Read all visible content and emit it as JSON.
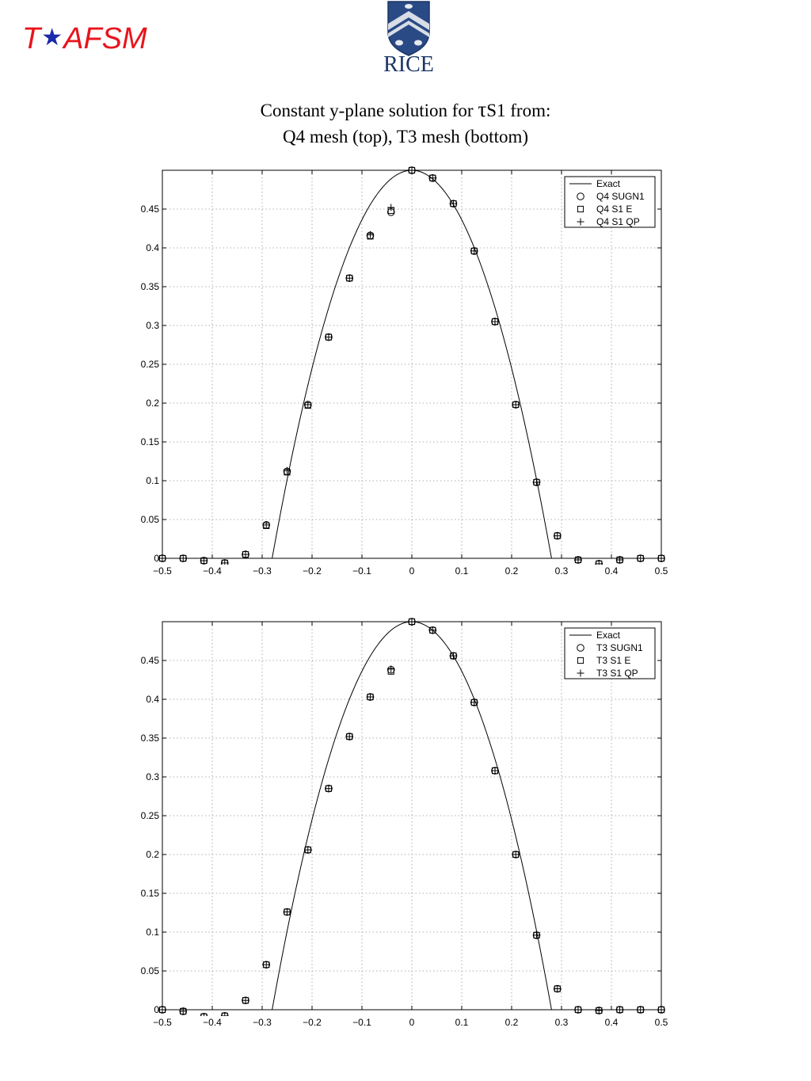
{
  "header": {
    "brand_left": "T",
    "brand_star": "★",
    "brand_right": "AFSM",
    "logo_text": "RICE",
    "logo_icon": "rice-university-shield",
    "title_line1_pre": "Constant y-plane solution for ",
    "title_tau": "τ",
    "title_line1_post": "S1 from:",
    "title_line2": "Q4 mesh (top), T3 mesh (bottom)"
  },
  "colors": {
    "brand_red": "#e8141c",
    "brand_star": "#1a2aa8",
    "shield": "#2a4a86",
    "line": "#000000",
    "grid": "#999999"
  },
  "chart_data": [
    {
      "type": "line",
      "title": "",
      "xlabel": "",
      "ylabel": "",
      "xlim": [
        -0.5,
        0.5
      ],
      "ylim": [
        0,
        0.5
      ],
      "xticks": [
        "−0.5",
        "−0.4",
        "−0.3",
        "−0.2",
        "−0.1",
        "0",
        "0.1",
        "0.2",
        "0.3",
        "0.4",
        "0.5"
      ],
      "xtick_values": [
        -0.5,
        -0.4,
        -0.3,
        -0.2,
        -0.1,
        0,
        0.1,
        0.2,
        0.3,
        0.4,
        0.5
      ],
      "yticks": [
        "0",
        "0.05",
        "0.1",
        "0.15",
        "0.2",
        "0.25",
        "0.3",
        "0.35",
        "0.4",
        "0.45"
      ],
      "ytick_values": [
        0,
        0.05,
        0.1,
        0.15,
        0.2,
        0.25,
        0.3,
        0.35,
        0.4,
        0.45
      ],
      "grid": true,
      "legend_position": "top-right",
      "series": [
        {
          "name": "Exact",
          "style": "line",
          "x": [
            -0.5,
            -0.28,
            -0.25,
            -0.2,
            -0.15,
            -0.1,
            -0.05,
            0,
            0.05,
            0.1,
            0.15,
            0.2,
            0.25,
            0.28,
            0.5
          ],
          "y": [
            0,
            0,
            0.104,
            0.245,
            0.357,
            0.438,
            0.484,
            0.5,
            0.484,
            0.438,
            0.357,
            0.245,
            0.104,
            0,
            0
          ]
        },
        {
          "name": "Q4 SUGN1",
          "style": "circle",
          "x": [
            -0.5,
            -0.4583,
            -0.4167,
            -0.375,
            -0.3333,
            -0.2917,
            -0.25,
            -0.2083,
            -0.1667,
            -0.125,
            -0.0833,
            -0.0417,
            0,
            0.0417,
            0.0833,
            0.125,
            0.1667,
            0.2083,
            0.25,
            0.2917,
            0.3333,
            0.375,
            0.4167,
            0.4583,
            0.5
          ],
          "y": [
            0,
            0,
            -0.003,
            -0.006,
            0.005,
            0.043,
            0.112,
            0.198,
            0.285,
            0.361,
            0.416,
            0.446,
            0.5,
            0.49,
            0.457,
            0.396,
            0.305,
            0.198,
            0.098,
            0.029,
            -0.002,
            -0.007,
            -0.002,
            0,
            0
          ]
        },
        {
          "name": "Q4 S1 E",
          "style": "square",
          "x": [
            -0.5,
            -0.4583,
            -0.4167,
            -0.375,
            -0.3333,
            -0.2917,
            -0.25,
            -0.2083,
            -0.1667,
            -0.125,
            -0.0833,
            -0.0417,
            0,
            0.0417,
            0.0833,
            0.125,
            0.1667,
            0.2083,
            0.25,
            0.2917,
            0.3333,
            0.375,
            0.4167,
            0.4583,
            0.5
          ],
          "y": [
            0,
            0,
            -0.003,
            -0.006,
            0.005,
            0.042,
            0.111,
            0.197,
            0.285,
            0.361,
            0.415,
            0.448,
            0.5,
            0.49,
            0.457,
            0.396,
            0.305,
            0.198,
            0.098,
            0.029,
            -0.002,
            -0.007,
            -0.002,
            0,
            0
          ]
        },
        {
          "name": "Q4 S1 QP",
          "style": "plus",
          "x": [
            -0.5,
            -0.4583,
            -0.4167,
            -0.375,
            -0.3333,
            -0.2917,
            -0.25,
            -0.2083,
            -0.1667,
            -0.125,
            -0.0833,
            -0.0417,
            0,
            0.0417,
            0.0833,
            0.125,
            0.1667,
            0.2083,
            0.25,
            0.2917,
            0.3333,
            0.375,
            0.4167,
            0.4583,
            0.5
          ],
          "y": [
            0,
            0,
            -0.003,
            -0.006,
            0.005,
            0.043,
            0.113,
            0.198,
            0.285,
            0.361,
            0.417,
            0.452,
            0.5,
            0.49,
            0.457,
            0.396,
            0.305,
            0.198,
            0.098,
            0.029,
            -0.002,
            -0.007,
            -0.002,
            0,
            0
          ]
        }
      ]
    },
    {
      "type": "line",
      "title": "",
      "xlabel": "",
      "ylabel": "",
      "xlim": [
        -0.5,
        0.5
      ],
      "ylim": [
        0,
        0.5
      ],
      "xticks": [
        "−0.5",
        "−0.4",
        "−0.3",
        "−0.2",
        "−0.1",
        "0",
        "0.1",
        "0.2",
        "0.3",
        "0.4",
        "0.5"
      ],
      "xtick_values": [
        -0.5,
        -0.4,
        -0.3,
        -0.2,
        -0.1,
        0,
        0.1,
        0.2,
        0.3,
        0.4,
        0.5
      ],
      "yticks": [
        "0",
        "0.05",
        "0.1",
        "0.15",
        "0.2",
        "0.25",
        "0.3",
        "0.35",
        "0.4",
        "0.45"
      ],
      "ytick_values": [
        0,
        0.05,
        0.1,
        0.15,
        0.2,
        0.25,
        0.3,
        0.35,
        0.4,
        0.45
      ],
      "grid": true,
      "legend_position": "top-right",
      "series": [
        {
          "name": "Exact",
          "style": "line",
          "x": [
            -0.5,
            -0.28,
            -0.25,
            -0.2,
            -0.15,
            -0.1,
            -0.05,
            0,
            0.05,
            0.1,
            0.15,
            0.2,
            0.25,
            0.28,
            0.5
          ],
          "y": [
            0,
            0,
            0.104,
            0.245,
            0.357,
            0.438,
            0.484,
            0.5,
            0.484,
            0.438,
            0.357,
            0.245,
            0.104,
            0,
            0
          ]
        },
        {
          "name": "T3 SUGN1",
          "style": "circle",
          "x": [
            -0.5,
            -0.4583,
            -0.4167,
            -0.375,
            -0.3333,
            -0.2917,
            -0.25,
            -0.2083,
            -0.1667,
            -0.125,
            -0.0833,
            -0.0417,
            0,
            0.0417,
            0.0833,
            0.125,
            0.1667,
            0.2083,
            0.25,
            0.2917,
            0.3333,
            0.375,
            0.4167,
            0.4583,
            0.5
          ],
          "y": [
            0,
            -0.002,
            -0.009,
            -0.008,
            0.012,
            0.058,
            0.126,
            0.206,
            0.285,
            0.352,
            0.403,
            0.438,
            0.5,
            0.489,
            0.456,
            0.396,
            0.308,
            0.2,
            0.096,
            0.027,
            0,
            -0.001,
            0,
            0,
            0
          ]
        },
        {
          "name": "T3 S1 E",
          "style": "square",
          "x": [
            -0.5,
            -0.4583,
            -0.4167,
            -0.375,
            -0.3333,
            -0.2917,
            -0.25,
            -0.2083,
            -0.1667,
            -0.125,
            -0.0833,
            -0.0417,
            0,
            0.0417,
            0.0833,
            0.125,
            0.1667,
            0.2083,
            0.25,
            0.2917,
            0.3333,
            0.375,
            0.4167,
            0.4583,
            0.5
          ],
          "y": [
            0,
            -0.002,
            -0.009,
            -0.008,
            0.012,
            0.058,
            0.126,
            0.206,
            0.285,
            0.352,
            0.403,
            0.436,
            0.5,
            0.489,
            0.456,
            0.396,
            0.308,
            0.2,
            0.096,
            0.027,
            0,
            -0.001,
            0,
            0,
            0
          ]
        },
        {
          "name": "T3 S1 QP",
          "style": "plus",
          "x": [
            -0.5,
            -0.4583,
            -0.4167,
            -0.375,
            -0.3333,
            -0.2917,
            -0.25,
            -0.2083,
            -0.1667,
            -0.125,
            -0.0833,
            -0.0417,
            0,
            0.0417,
            0.0833,
            0.125,
            0.1667,
            0.2083,
            0.25,
            0.2917,
            0.3333,
            0.375,
            0.4167,
            0.4583,
            0.5
          ],
          "y": [
            0,
            -0.002,
            -0.009,
            -0.008,
            0.012,
            0.058,
            0.126,
            0.206,
            0.285,
            0.352,
            0.403,
            0.439,
            0.5,
            0.489,
            0.456,
            0.396,
            0.308,
            0.2,
            0.096,
            0.027,
            0,
            -0.001,
            0,
            0,
            0
          ]
        }
      ]
    }
  ]
}
